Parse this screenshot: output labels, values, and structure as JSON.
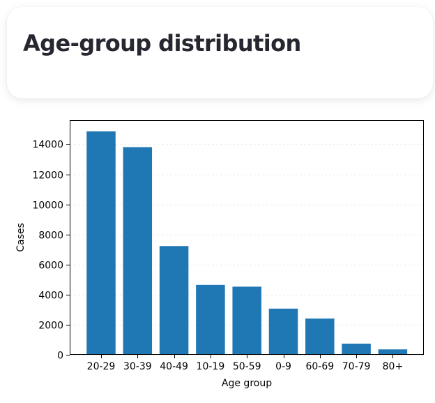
{
  "header": {
    "title": "Age-group distribution"
  },
  "chart_data": {
    "type": "bar",
    "title": "",
    "xlabel": "Age group",
    "ylabel": "Cases",
    "categories": [
      "20-29",
      "30-39",
      "40-49",
      "10-19",
      "50-59",
      "0-9",
      "60-69",
      "70-79",
      "80+"
    ],
    "values": [
      14850,
      13800,
      7230,
      4650,
      4530,
      3070,
      2410,
      740,
      360
    ],
    "yticks": [
      0,
      2000,
      4000,
      6000,
      8000,
      10000,
      12000,
      14000
    ],
    "ylim": [
      0,
      15600
    ],
    "grid": "y-dashed",
    "bar_color": "#1f77b4"
  }
}
